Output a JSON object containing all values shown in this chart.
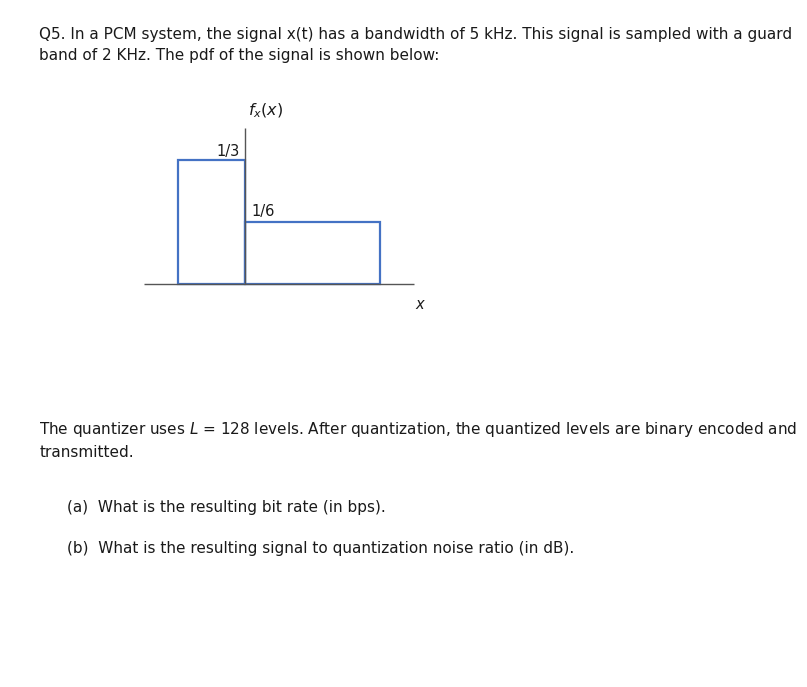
{
  "title_text": "Q5. In a PCM system, the signal x(t) has a bandwidth of 5 kHz. This signal is sampled with a guard\nband of 2 KHz. The pdf of the signal is shown below:",
  "pdf_ylabel": "$f_x(x)$",
  "pdf_xlabel": "x",
  "bar1_label": "1/3",
  "bar2_label": "1/6",
  "bar_color": "#4472C4",
  "separator_color": "#C8C8C8",
  "bottom_text": "The quantizer uses $L$ = 128 levels. After quantization, the quantized levels are binary encoded and\ntransmitted.",
  "question_a": "(a)  What is the resulting bit rate (in bps).",
  "question_b": "(b)  What is the resulting signal to quantization noise ratio (in dB).",
  "bg_color": "#ffffff",
  "text_color": "#1a1a1a",
  "fig_width": 7.76,
  "fig_height": 6.68,
  "font_size_main": 11.0,
  "font_size_label": 10.5,
  "font_size_axis_label": 11.5
}
